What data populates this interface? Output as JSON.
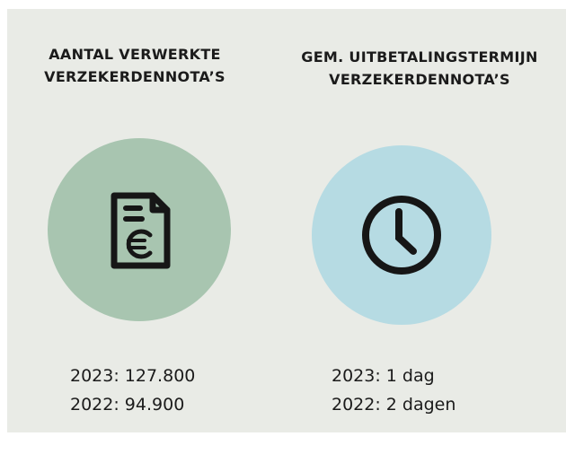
{
  "columns": [
    {
      "title": [
        "AANTAL VERWERKTE",
        "VERZEKERDENNOTA’S"
      ],
      "lines": [
        "2023: 127.800",
        "2022: 94.900"
      ]
    },
    {
      "title": [
        "GEM. UITBETALINGSTERMIJN",
        "VERZEKERDENNOTA’S"
      ],
      "lines": [
        "2023: 1 dag",
        "2022: 2 dagen"
      ]
    }
  ]
}
